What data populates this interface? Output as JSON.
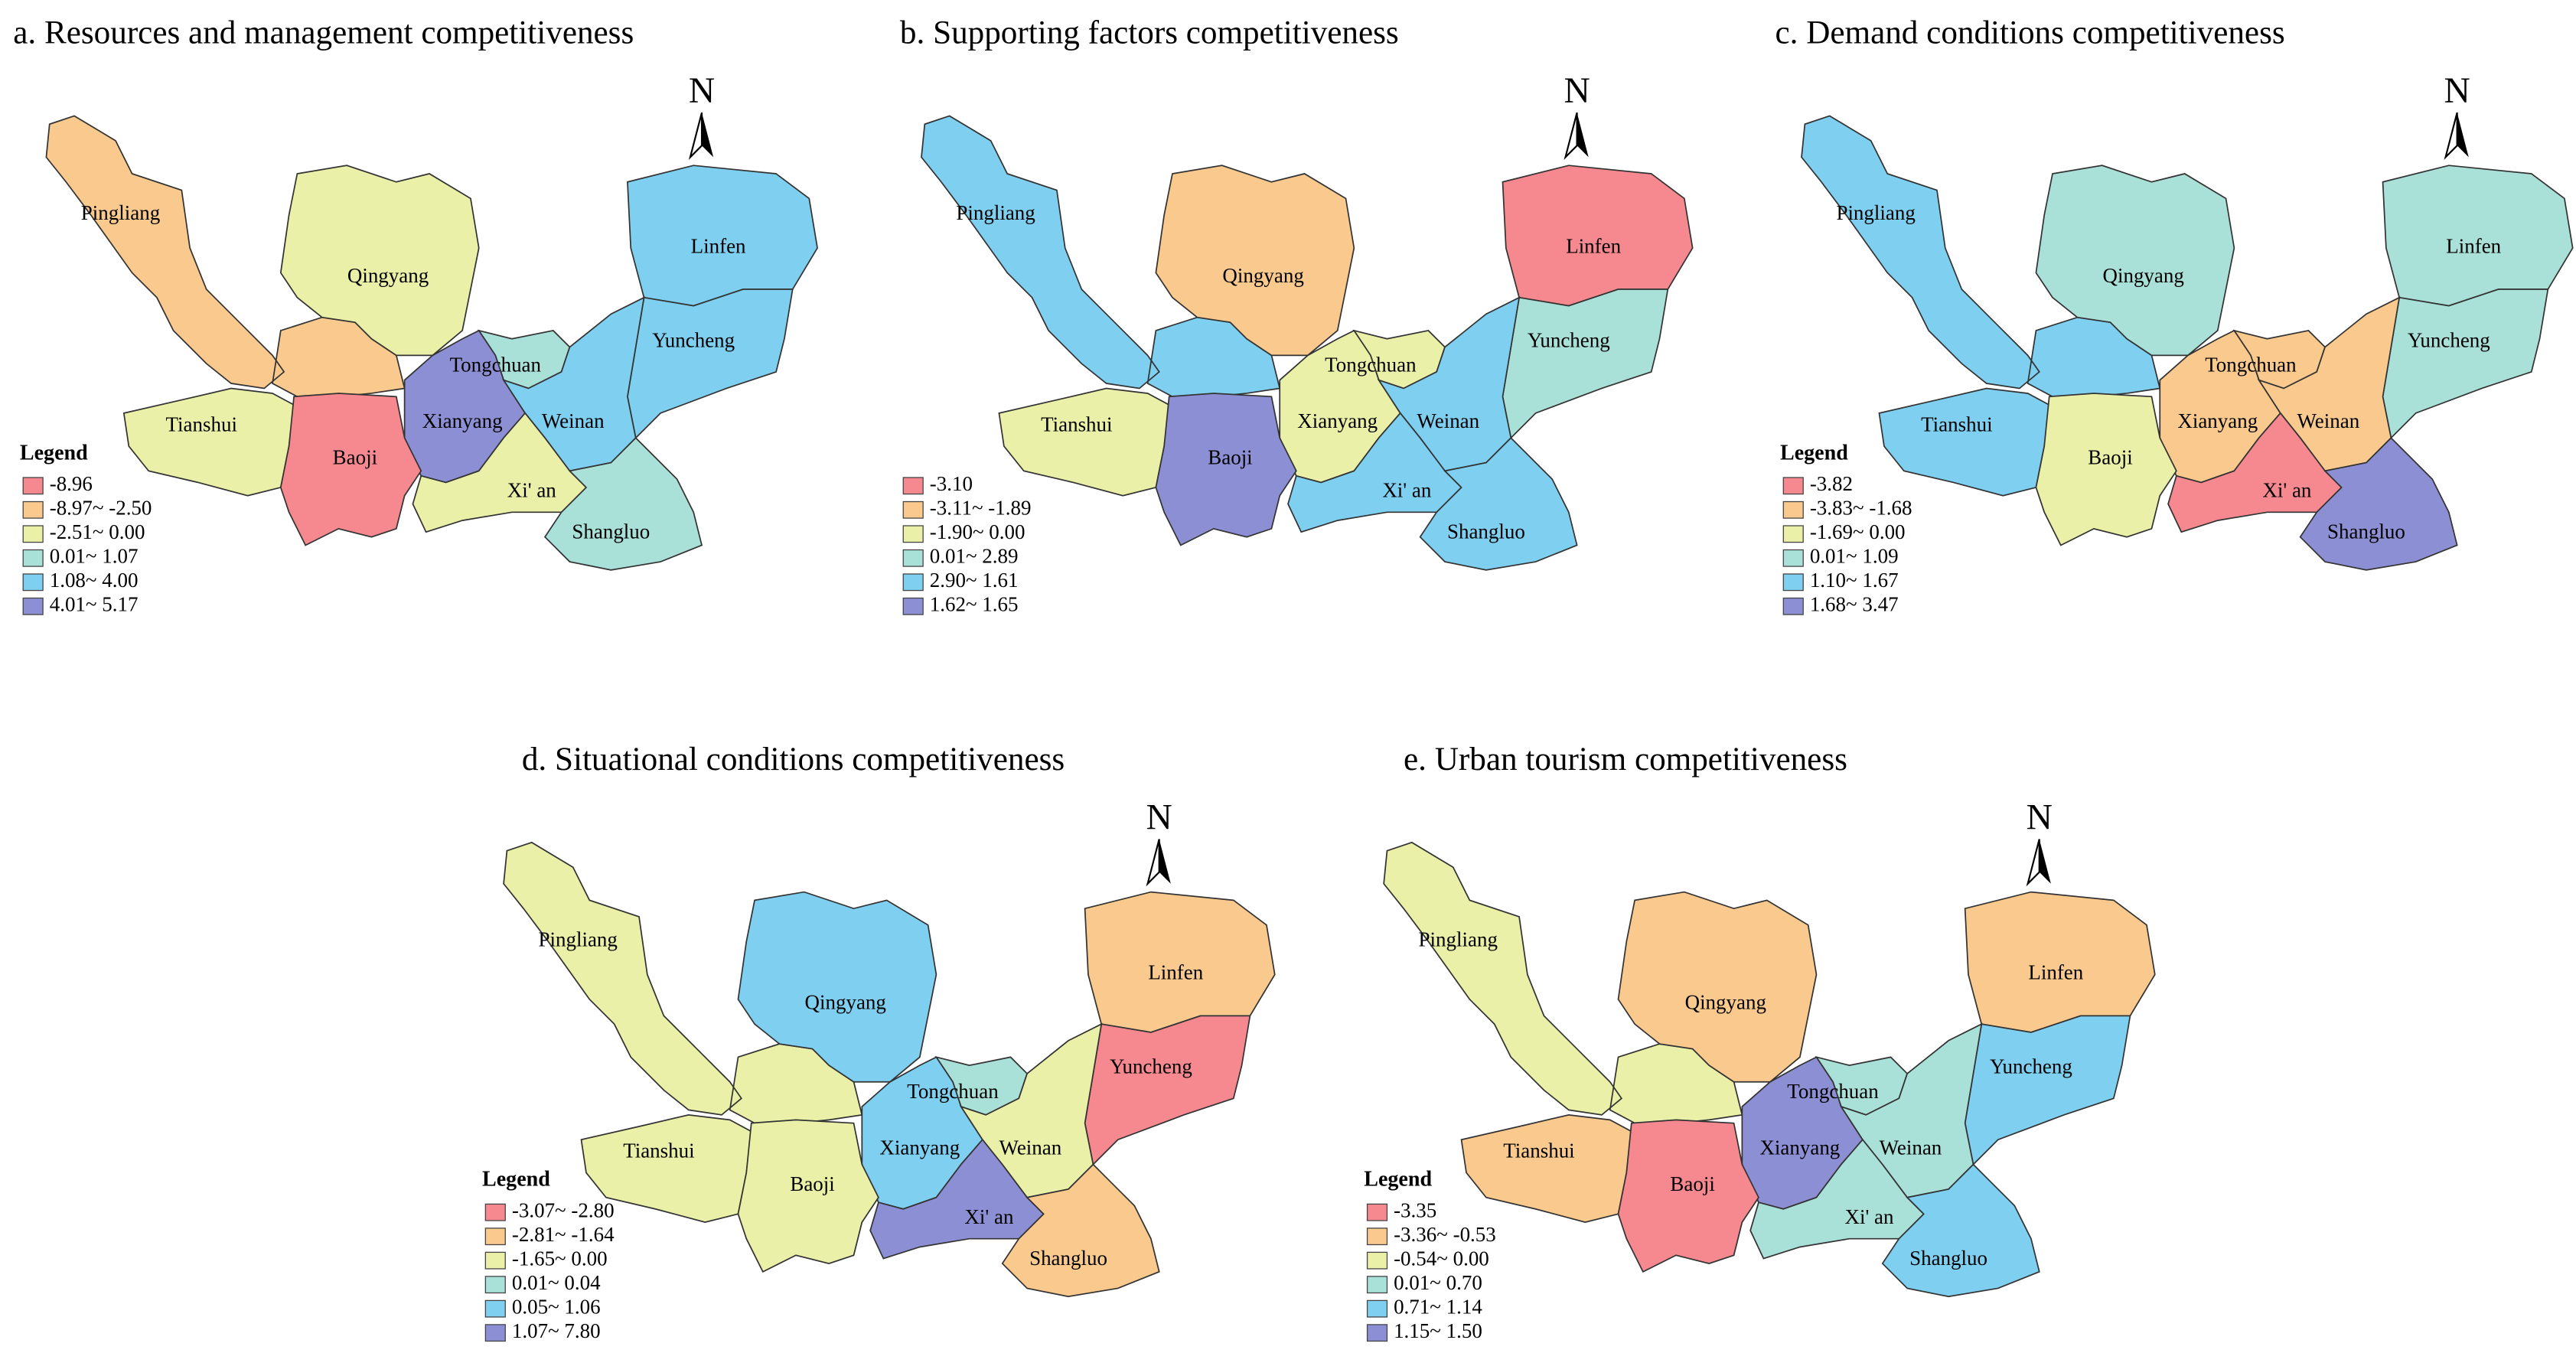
{
  "maps": [
    {
      "title": "a. Resources and management competitiveness",
      "north_label": "N",
      "legend": {
        "title": "Legend",
        "items": [
          {
            "label": "-8.96",
            "color": "#f6888f"
          },
          {
            "label": "-8.97~ -2.50",
            "color": "#f9c98e"
          },
          {
            "label": "-2.51~ 0.00",
            "color": "#eaf0a8"
          },
          {
            "label": "0.01~ 1.07",
            "color": "#a9e0d8"
          },
          {
            "label": "1.08~ 4.00",
            "color": "#7fcff0"
          },
          {
            "label": "4.01~ 5.17",
            "color": "#8c8fd3"
          }
        ]
      },
      "regions": [
        {
          "name": "Pingliang",
          "color": "#f9c98e"
        },
        {
          "name": "Qingyang",
          "color": "#eaf0a8"
        },
        {
          "name": "Linfen",
          "color": "#7fcff0"
        },
        {
          "name": "Yuncheng",
          "color": "#7fcff0"
        },
        {
          "name": "Tongchuan",
          "color": "#a9e0d8"
        },
        {
          "name": "Xianyang",
          "color": "#8c8fd3"
        },
        {
          "name": "Weinan",
          "color": "#7fcff0"
        },
        {
          "name": "Tianshui",
          "color": "#eaf0a8"
        },
        {
          "name": "Baoji",
          "color": "#f6888f"
        },
        {
          "name": "Xi' an",
          "color": "#eaf0a8"
        },
        {
          "name": "Shangluo",
          "color": "#a9e0d8"
        }
      ]
    },
    {
      "title": "b. Supporting factors competitiveness",
      "north_label": "N",
      "legend": {
        "title": "",
        "items": [
          {
            "label": "-3.10",
            "color": "#f6888f"
          },
          {
            "label": "-3.11~ -1.89",
            "color": "#f9c98e"
          },
          {
            "label": "-1.90~ 0.00",
            "color": "#eaf0a8"
          },
          {
            "label": "0.01~ 2.89",
            "color": "#a9e0d8"
          },
          {
            "label": "2.90~ 1.61",
            "color": "#7fcff0"
          },
          {
            "label": "1.62~ 1.65",
            "color": "#8c8fd3"
          }
        ]
      },
      "regions": [
        {
          "name": "Pingliang",
          "color": "#7fcff0"
        },
        {
          "name": "Qingyang",
          "color": "#f9c98e"
        },
        {
          "name": "Linfen",
          "color": "#f6888f"
        },
        {
          "name": "Yuncheng",
          "color": "#a9e0d8"
        },
        {
          "name": "Tongchuan",
          "color": "#eaf0a8"
        },
        {
          "name": "Xianyang",
          "color": "#eaf0a8"
        },
        {
          "name": "Weinan",
          "color": "#7fcff0"
        },
        {
          "name": "Tianshui",
          "color": "#eaf0a8"
        },
        {
          "name": "Baoji",
          "color": "#8c8fd3"
        },
        {
          "name": "Xi' an",
          "color": "#7fcff0"
        },
        {
          "name": "Shangluo",
          "color": "#7fcff0"
        }
      ]
    },
    {
      "title": "c. Demand conditions competitiveness",
      "north_label": "N",
      "legend": {
        "title": "Legend",
        "items": [
          {
            "label": "-3.82",
            "color": "#f6888f"
          },
          {
            "label": "-3.83~ -1.68",
            "color": "#f9c98e"
          },
          {
            "label": "-1.69~ 0.00",
            "color": "#eaf0a8"
          },
          {
            "label": "0.01~ 1.09",
            "color": "#a9e0d8"
          },
          {
            "label": "1.10~ 1.67",
            "color": "#7fcff0"
          },
          {
            "label": "1.68~ 3.47",
            "color": "#8c8fd3"
          }
        ]
      },
      "regions": [
        {
          "name": "Pingliang",
          "color": "#7fcff0"
        },
        {
          "name": "Qingyang",
          "color": "#a9e0d8"
        },
        {
          "name": "Linfen",
          "color": "#a9e0d8"
        },
        {
          "name": "Yuncheng",
          "color": "#a9e0d8"
        },
        {
          "name": "Tongchuan",
          "color": "#f9c98e"
        },
        {
          "name": "Xianyang",
          "color": "#f9c98e"
        },
        {
          "name": "Weinan",
          "color": "#f9c98e"
        },
        {
          "name": "Tianshui",
          "color": "#7fcff0"
        },
        {
          "name": "Baoji",
          "color": "#eaf0a8"
        },
        {
          "name": "Xi' an",
          "color": "#f6888f"
        },
        {
          "name": "Shangluo",
          "color": "#8c8fd3"
        }
      ]
    },
    {
      "title": "d. Situational conditions competitiveness",
      "north_label": "N",
      "legend": {
        "title": "Legend",
        "items": [
          {
            "label": "-3.07~ -2.80",
            "color": "#f6888f"
          },
          {
            "label": "-2.81~ -1.64",
            "color": "#f9c98e"
          },
          {
            "label": "-1.65~ 0.00",
            "color": "#eaf0a8"
          },
          {
            "label": "0.01~ 0.04",
            "color": "#a9e0d8"
          },
          {
            "label": "0.05~ 1.06",
            "color": "#7fcff0"
          },
          {
            "label": "1.07~ 7.80",
            "color": "#8c8fd3"
          }
        ]
      },
      "regions": [
        {
          "name": "Pingliang",
          "color": "#eaf0a8"
        },
        {
          "name": "Qingyang",
          "color": "#7fcff0"
        },
        {
          "name": "Linfen",
          "color": "#f9c98e"
        },
        {
          "name": "Yuncheng",
          "color": "#f6888f"
        },
        {
          "name": "Tongchuan",
          "color": "#a9e0d8"
        },
        {
          "name": "Xianyang",
          "color": "#7fcff0"
        },
        {
          "name": "Weinan",
          "color": "#eaf0a8"
        },
        {
          "name": "Tianshui",
          "color": "#eaf0a8"
        },
        {
          "name": "Baoji",
          "color": "#eaf0a8"
        },
        {
          "name": "Xi' an",
          "color": "#8c8fd3"
        },
        {
          "name": "Shangluo",
          "color": "#f9c98e"
        }
      ]
    },
    {
      "title": "e. Urban tourism competitiveness",
      "north_label": "N",
      "legend": {
        "title": "Legend",
        "items": [
          {
            "label": "-3.35",
            "color": "#f6888f"
          },
          {
            "label": "-3.36~ -0.53",
            "color": "#f9c98e"
          },
          {
            "label": "-0.54~ 0.00",
            "color": "#eaf0a8"
          },
          {
            "label": "0.01~ 0.70",
            "color": "#a9e0d8"
          },
          {
            "label": "0.71~ 1.14",
            "color": "#7fcff0"
          },
          {
            "label": "1.15~ 1.50",
            "color": "#8c8fd3"
          }
        ]
      },
      "regions": [
        {
          "name": "Pingliang",
          "color": "#eaf0a8"
        },
        {
          "name": "Qingyang",
          "color": "#f9c98e"
        },
        {
          "name": "Linfen",
          "color": "#f9c98e"
        },
        {
          "name": "Yuncheng",
          "color": "#7fcff0"
        },
        {
          "name": "Tongchuan",
          "color": "#a9e0d8"
        },
        {
          "name": "Xianyang",
          "color": "#8c8fd3"
        },
        {
          "name": "Weinan",
          "color": "#a9e0d8"
        },
        {
          "name": "Tianshui",
          "color": "#f9c98e"
        },
        {
          "name": "Baoji",
          "color": "#f6888f"
        },
        {
          "name": "Xi' an",
          "color": "#a9e0d8"
        },
        {
          "name": "Shangluo",
          "color": "#7fcff0"
        }
      ]
    }
  ]
}
